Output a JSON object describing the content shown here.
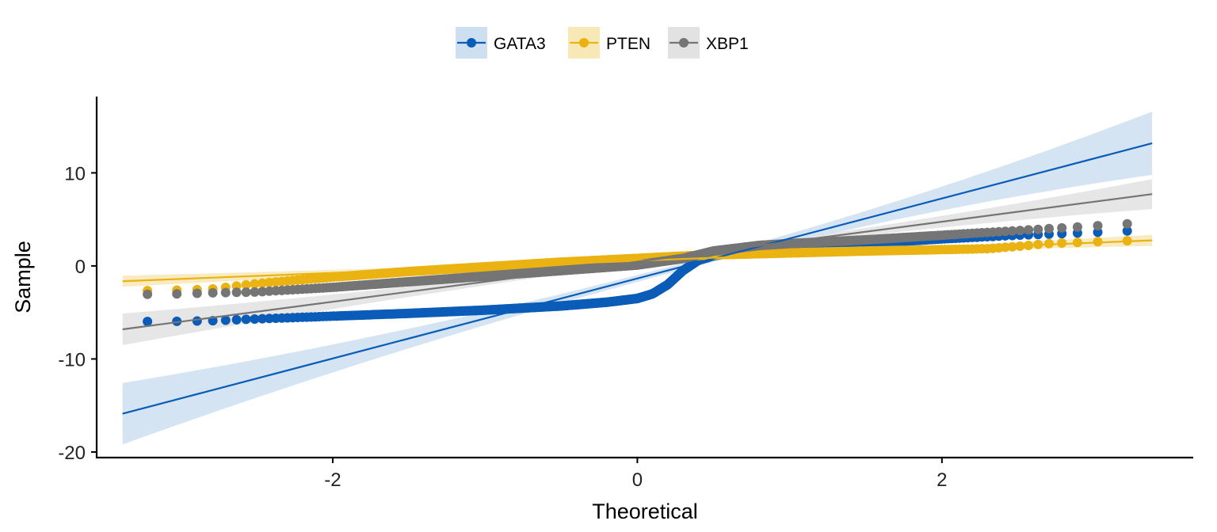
{
  "chart_data": {
    "type": "scatter",
    "subtype": "qq-plot",
    "title": "",
    "xlabel": "Theoretical",
    "ylabel": "Sample",
    "xlim": [
      -3.55,
      3.65
    ],
    "ylim": [
      -20.6,
      18.2
    ],
    "xticks": [
      -2,
      0,
      2
    ],
    "xtick_labels": [
      "-2",
      "0",
      "2"
    ],
    "yticks": [
      -20,
      -10,
      0,
      10
    ],
    "ytick_labels": [
      "-20",
      "-10",
      "0",
      "10"
    ],
    "grid": false,
    "legend": {
      "position": "top",
      "title": ""
    },
    "series": [
      {
        "name": "GATA3",
        "color": "#0a5cb8",
        "band_color": "#cddff0",
        "line": {
          "intercept": -1.35,
          "slope": 4.3
        },
        "band_halfwidth": {
          "at_min": 3.3,
          "at_max": 3.4,
          "center_x": 0.3,
          "center": 0.35
        },
        "quantile_curve": [
          [
            -3.4,
            -6.0
          ],
          [
            -3.0,
            -5.95
          ],
          [
            -2.8,
            -5.9
          ],
          [
            -2.5,
            -5.7
          ],
          [
            -2.0,
            -5.4
          ],
          [
            -1.5,
            -5.1
          ],
          [
            -1.0,
            -4.75
          ],
          [
            -0.5,
            -4.3
          ],
          [
            -0.2,
            -3.9
          ],
          [
            0.0,
            -3.5
          ],
          [
            0.1,
            -3.0
          ],
          [
            0.2,
            -2.0
          ],
          [
            0.3,
            -0.5
          ],
          [
            0.4,
            0.6
          ],
          [
            0.5,
            1.1
          ],
          [
            0.7,
            1.6
          ],
          [
            1.0,
            2.0
          ],
          [
            1.5,
            2.4
          ],
          [
            2.0,
            2.9
          ],
          [
            2.5,
            3.3
          ],
          [
            3.0,
            3.6
          ],
          [
            3.4,
            3.9
          ]
        ]
      },
      {
        "name": "PTEN",
        "color": "#eab312",
        "band_color": "#f7e8b6",
        "line": {
          "intercept": 0.55,
          "slope": 0.65
        },
        "band_halfwidth": {
          "at_min": 0.6,
          "at_max": 0.6,
          "center_x": 0.3,
          "center": 0.15
        },
        "quantile_curve": [
          [
            -3.4,
            -2.7
          ],
          [
            -3.0,
            -2.6
          ],
          [
            -2.8,
            -2.5
          ],
          [
            -2.5,
            -1.9
          ],
          [
            -2.0,
            -1.2
          ],
          [
            -1.5,
            -0.6
          ],
          [
            -1.0,
            -0.1
          ],
          [
            -0.5,
            0.4
          ],
          [
            0.0,
            0.8
          ],
          [
            0.3,
            1.05
          ],
          [
            0.5,
            1.2
          ],
          [
            1.0,
            1.4
          ],
          [
            1.5,
            1.6
          ],
          [
            2.0,
            1.75
          ],
          [
            2.3,
            1.85
          ],
          [
            2.5,
            2.1
          ],
          [
            2.7,
            2.4
          ],
          [
            3.0,
            2.6
          ],
          [
            3.4,
            2.8
          ]
        ]
      },
      {
        "name": "XBP1",
        "color": "#757575",
        "band_color": "#e2e2e2",
        "line": {
          "intercept": 0.45,
          "slope": 2.15
        },
        "band_halfwidth": {
          "at_min": 1.7,
          "at_max": 1.6,
          "center_x": 0.3,
          "center": 0.2
        },
        "quantile_curve": [
          [
            -3.4,
            -3.1
          ],
          [
            -3.0,
            -3.0
          ],
          [
            -2.8,
            -2.9
          ],
          [
            -2.5,
            -2.8
          ],
          [
            -2.0,
            -2.3
          ],
          [
            -1.5,
            -1.7
          ],
          [
            -1.0,
            -1.1
          ],
          [
            -0.5,
            -0.5
          ],
          [
            0.0,
            0.1
          ],
          [
            0.3,
            0.8
          ],
          [
            0.5,
            1.6
          ],
          [
            0.8,
            2.2
          ],
          [
            1.0,
            2.4
          ],
          [
            1.5,
            2.8
          ],
          [
            2.0,
            3.3
          ],
          [
            2.5,
            3.8
          ],
          [
            3.0,
            4.3
          ],
          [
            3.4,
            4.7
          ]
        ]
      }
    ],
    "point_x_range": [
      -3.38,
      3.38
    ],
    "point_count": 600
  }
}
